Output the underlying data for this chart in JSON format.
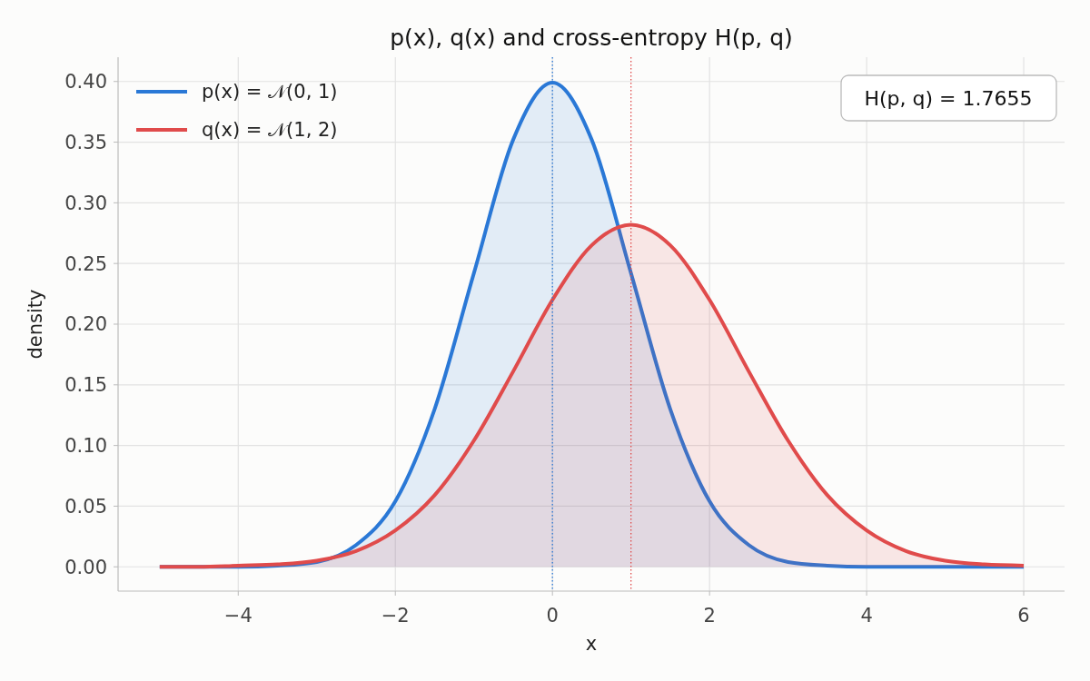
{
  "chart_data": {
    "type": "area",
    "title": "p(x), q(x) and cross-entropy H(p, q)",
    "xlabel": "x",
    "ylabel": "density",
    "x": [
      -5,
      -4.5,
      -4,
      -3.5,
      -3,
      -2.5,
      -2,
      -1.5,
      -1,
      -0.5,
      0,
      0.5,
      1,
      1.5,
      2,
      2.5,
      3,
      3.5,
      4,
      4.5,
      5,
      5.5,
      6
    ],
    "series": [
      {
        "name": "p(x) = 𝒩(0, 1)",
        "color": "#2a78d6",
        "values": [
          0,
          0,
          0,
          0.001,
          0.004,
          0.018,
          0.054,
          0.13,
          0.242,
          0.352,
          0.399,
          0.352,
          0.242,
          0.13,
          0.054,
          0.018,
          0.004,
          0.001,
          0,
          0,
          0,
          0,
          0
        ]
      },
      {
        "name": "q(x) = 𝒩(1, 2)",
        "color": "#e04b4b",
        "values": [
          0,
          0,
          0.001,
          0.002,
          0.005,
          0.013,
          0.03,
          0.059,
          0.104,
          0.161,
          0.22,
          0.265,
          0.282,
          0.265,
          0.22,
          0.161,
          0.104,
          0.059,
          0.03,
          0.013,
          0.005,
          0.002,
          0.001
        ]
      }
    ],
    "xlim": [
      -5.53,
      6.52
    ],
    "ylim": [
      -0.02,
      0.42
    ],
    "xticks": [
      {
        "value": -4,
        "label": "−4"
      },
      {
        "value": -2,
        "label": "−2"
      },
      0,
      2,
      4,
      6
    ],
    "yticks": [
      {
        "value": 0,
        "label": "0.00"
      },
      {
        "value": 0.05,
        "label": "0.05"
      },
      {
        "value": 0.1,
        "label": "0.10"
      },
      {
        "value": 0.15,
        "label": "0.15"
      },
      {
        "value": 0.2,
        "label": "0.20"
      },
      {
        "value": 0.25,
        "label": "0.25"
      },
      {
        "value": 0.3,
        "label": "0.30"
      },
      {
        "value": 0.35,
        "label": "0.35"
      },
      {
        "value": 0.4,
        "label": "0.40"
      }
    ],
    "ref_lines": [
      {
        "axis": "x",
        "value": 0,
        "color": "#2a78d6",
        "line_style": "dotted"
      },
      {
        "axis": "x",
        "value": 1,
        "color": "#e04b4b",
        "line_style": "dotted"
      }
    ],
    "annotations": [
      "H(p, q) = 1.7655"
    ],
    "grid": true,
    "legend": "top left"
  }
}
